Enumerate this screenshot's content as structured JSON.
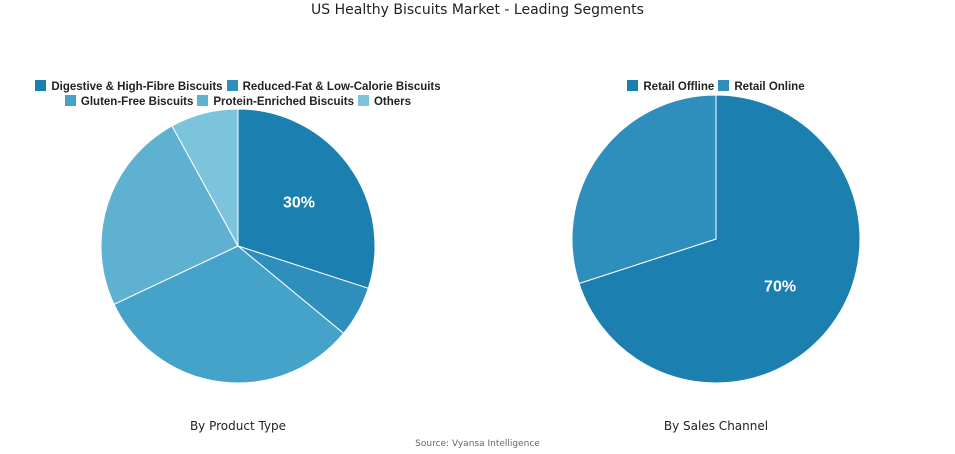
{
  "title": "US Healthy Biscuits Market - Leading Segments",
  "source": "Source: Vyansa Intelligence",
  "chart_data": [
    {
      "type": "pie",
      "label": "By Product Type",
      "categories": [
        "Digestive & High-Fibre Biscuits",
        "Reduced-Fat & Low-Calorie Biscuits",
        "Gluten-Free Biscuits",
        "Protein-Enriched Biscuits",
        "Others"
      ],
      "values": [
        30,
        6,
        32,
        24,
        8
      ],
      "colors": [
        "#1b7fb0",
        "#2e8fbd",
        "#45a2c9",
        "#5fb1d2",
        "#7bc4dc"
      ],
      "data_labels": [
        "30%",
        "",
        "",
        "",
        ""
      ],
      "legend_position": "top"
    },
    {
      "type": "pie",
      "label": "By Sales Channel",
      "categories": [
        "Retail Offline",
        "Retail Online"
      ],
      "values": [
        70,
        30
      ],
      "colors": [
        "#1b7fb0",
        "#2e8fbd"
      ],
      "data_labels": [
        "70%",
        ""
      ],
      "legend_position": "top"
    }
  ]
}
